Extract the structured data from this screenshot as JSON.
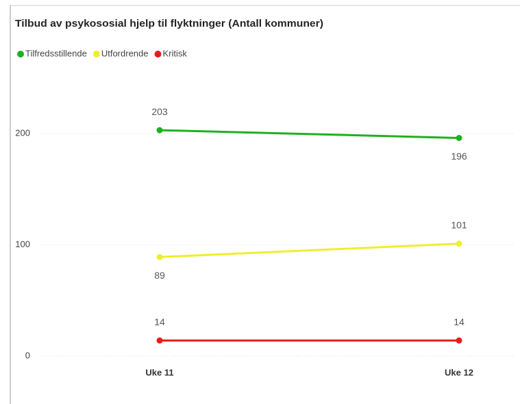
{
  "chart_data": {
    "type": "line",
    "title": "Tilbud av psykososial hjelp til flyktninger (Antall kommuner)",
    "categories": [
      "Uke 11",
      "Uke 12"
    ],
    "series": [
      {
        "name": "Tilfredsstillende",
        "color": "#1fb01f",
        "values": [
          203,
          196
        ]
      },
      {
        "name": "Utfordrende",
        "color": "#eeee30",
        "values": [
          89,
          101
        ]
      },
      {
        "name": "Kritisk",
        "color": "#e81c1c",
        "values": [
          14,
          14
        ]
      }
    ],
    "ylim": [
      0,
      240
    ],
    "yticks": [
      0,
      100,
      200
    ],
    "grid": true,
    "legend": "top-left"
  }
}
